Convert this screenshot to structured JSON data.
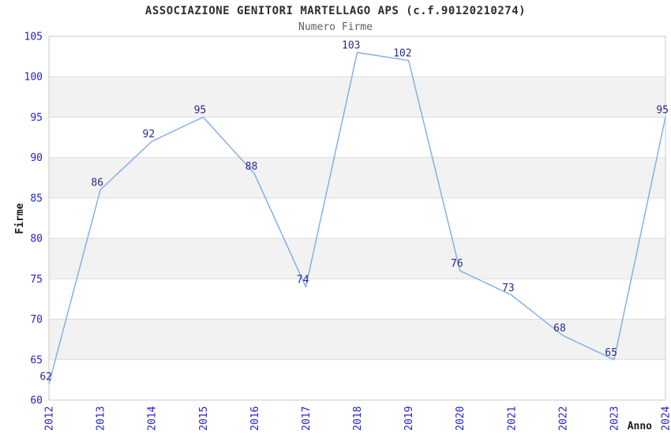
{
  "chart_data": {
    "type": "line",
    "title": "ASSOCIAZIONE GENITORI MARTELLAGO APS (c.f.90120210274)",
    "subtitle": "Numero Firme",
    "x": [
      "2012",
      "2013",
      "2014",
      "2015",
      "2016",
      "2017",
      "2018",
      "2019",
      "2020",
      "2021",
      "2022",
      "2023",
      "2024"
    ],
    "values": [
      62,
      86,
      92,
      95,
      88,
      74,
      103,
      102,
      76,
      73,
      68,
      65,
      95
    ],
    "xlabel": "Anno",
    "ylabel": "Firme",
    "ylim": [
      60,
      105
    ],
    "ytick_step": 5,
    "yticks": [
      60,
      65,
      70,
      75,
      80,
      85,
      90,
      95,
      100,
      105
    ],
    "grid": true,
    "legend_position": "none",
    "band_fill_alternating": true,
    "colors": {
      "line": "#7aade9",
      "tick_label": "#2323cd",
      "data_label": "#2b2b88",
      "band": "#f2f2f2",
      "gridline": "#dddddd",
      "plot_border": "#c9c9c9",
      "title": "#2e2e2e",
      "subtitle": "#606060",
      "axis_title": "#1a1a1a",
      "background": "#ffffff"
    }
  }
}
